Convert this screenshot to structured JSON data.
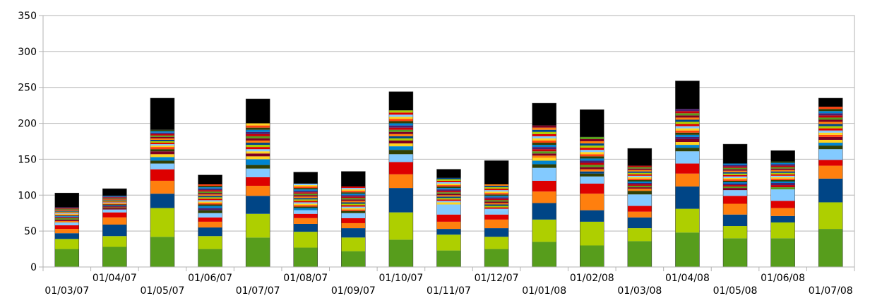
{
  "chart_data": {
    "type": "bar",
    "stacked": true,
    "title": "",
    "xlabel": "",
    "ylabel": "",
    "ylim": [
      0,
      350
    ],
    "y_ticks": [
      0,
      50,
      100,
      150,
      200,
      250,
      300,
      350
    ],
    "grid": true,
    "legend": "none",
    "categories": [
      "01/03/07",
      "01/04/07",
      "01/05/07",
      "01/06/07",
      "01/07/07",
      "01/08/07",
      "01/09/07",
      "01/10/07",
      "01/11/07",
      "01/12/07",
      "01/01/08",
      "01/02/08",
      "01/03/08",
      "01/04/08",
      "01/05/08",
      "01/06/08",
      "01/07/08"
    ],
    "major_colors": [
      "#579d1c",
      "#aecf00",
      "#004586",
      "#ff7f0e",
      "#dd0000",
      "#83caff",
      "#314004",
      "#0084d1",
      "#ffd320",
      "#7e0021",
      "#4b1f6f",
      "#c5000b"
    ],
    "minor_colors": [
      "#ff420e",
      "#ffd320",
      "#83caff",
      "#dd0000",
      "#aecf00",
      "#004586",
      "#ff7f0e",
      "#7e0021",
      "#579d1c",
      "#c5000b",
      "#4b1f6f",
      "#0084d1",
      "#314004"
    ],
    "top_color": "#000000",
    "series_values": [
      [
        25,
        14,
        8,
        6,
        5,
        4,
        2,
        2,
        2,
        1,
        1,
        1,
        1,
        1,
        1,
        1,
        1,
        1,
        1,
        1,
        1,
        1,
        1,
        1,
        20
      ],
      [
        28,
        15,
        16,
        10,
        7,
        4,
        2,
        1,
        1,
        1,
        1,
        1,
        1,
        1,
        1,
        1,
        1,
        1,
        1,
        1,
        1,
        1,
        1,
        1,
        10
      ],
      [
        42,
        40,
        20,
        18,
        16,
        8,
        4,
        5,
        4,
        4,
        3,
        3,
        2,
        2,
        2,
        2,
        2,
        2,
        2,
        2,
        2,
        2,
        2,
        2,
        44
      ],
      [
        25,
        18,
        12,
        8,
        6,
        6,
        4,
        3,
        3,
        2,
        2,
        2,
        2,
        2,
        2,
        2,
        2,
        2,
        2,
        2,
        2,
        2,
        2,
        2,
        13
      ],
      [
        41,
        33,
        25,
        14,
        12,
        12,
        5,
        8,
        4,
        4,
        3,
        3,
        3,
        3,
        3,
        3,
        3,
        3,
        3,
        3,
        3,
        3,
        3,
        3,
        34
      ],
      [
        27,
        22,
        11,
        8,
        6,
        5,
        3,
        2,
        2,
        2,
        2,
        2,
        2,
        2,
        2,
        2,
        2,
        2,
        2,
        2,
        2,
        2,
        2,
        2,
        16
      ],
      [
        22,
        19,
        13,
        7,
        7,
        7,
        3,
        2,
        2,
        2,
        2,
        2,
        2,
        2,
        2,
        2,
        2,
        2,
        2,
        2,
        2,
        2,
        2,
        2,
        21
      ],
      [
        38,
        38,
        34,
        19,
        17,
        11,
        6,
        5,
        4,
        4,
        3,
        3,
        3,
        3,
        3,
        3,
        3,
        3,
        3,
        3,
        3,
        3,
        3,
        3,
        26
      ],
      [
        23,
        22,
        8,
        10,
        10,
        14,
        3,
        2,
        2,
        2,
        2,
        2,
        2,
        2,
        2,
        2,
        2,
        2,
        2,
        2,
        2,
        2,
        2,
        2,
        12
      ],
      [
        25,
        17,
        12,
        12,
        7,
        5,
        3,
        2,
        2,
        2,
        2,
        2,
        2,
        2,
        2,
        2,
        2,
        2,
        2,
        2,
        2,
        2,
        2,
        2,
        33
      ],
      [
        35,
        31,
        23,
        16,
        15,
        18,
        5,
        5,
        4,
        3,
        3,
        3,
        3,
        3,
        3,
        3,
        3,
        3,
        3,
        3,
        3,
        3,
        3,
        3,
        31
      ],
      [
        30,
        33,
        16,
        23,
        14,
        10,
        4,
        3,
        3,
        3,
        3,
        3,
        3,
        3,
        3,
        3,
        3,
        3,
        3,
        3,
        3,
        3,
        3,
        3,
        38
      ],
      [
        36,
        18,
        15,
        8,
        8,
        16,
        5,
        3,
        2,
        2,
        2,
        2,
        2,
        2,
        2,
        2,
        2,
        2,
        2,
        2,
        2,
        2,
        2,
        2,
        24
      ],
      [
        48,
        33,
        31,
        18,
        14,
        17,
        5,
        4,
        4,
        4,
        3,
        3,
        3,
        3,
        3,
        3,
        3,
        3,
        3,
        3,
        3,
        3,
        3,
        3,
        39
      ],
      [
        40,
        17,
        16,
        15,
        11,
        8,
        3,
        2,
        2,
        2,
        2,
        2,
        2,
        2,
        2,
        2,
        2,
        2,
        2,
        2,
        2,
        2,
        2,
        2,
        27
      ],
      [
        40,
        22,
        9,
        11,
        10,
        16,
        3,
        3,
        3,
        2,
        2,
        2,
        2,
        2,
        2,
        2,
        2,
        2,
        2,
        2,
        2,
        2,
        2,
        2,
        15
      ],
      [
        53,
        37,
        33,
        18,
        8,
        15,
        5,
        4,
        4,
        4,
        3,
        3,
        3,
        3,
        3,
        3,
        3,
        3,
        3,
        3,
        3,
        3,
        3,
        3,
        12
      ]
    ]
  }
}
